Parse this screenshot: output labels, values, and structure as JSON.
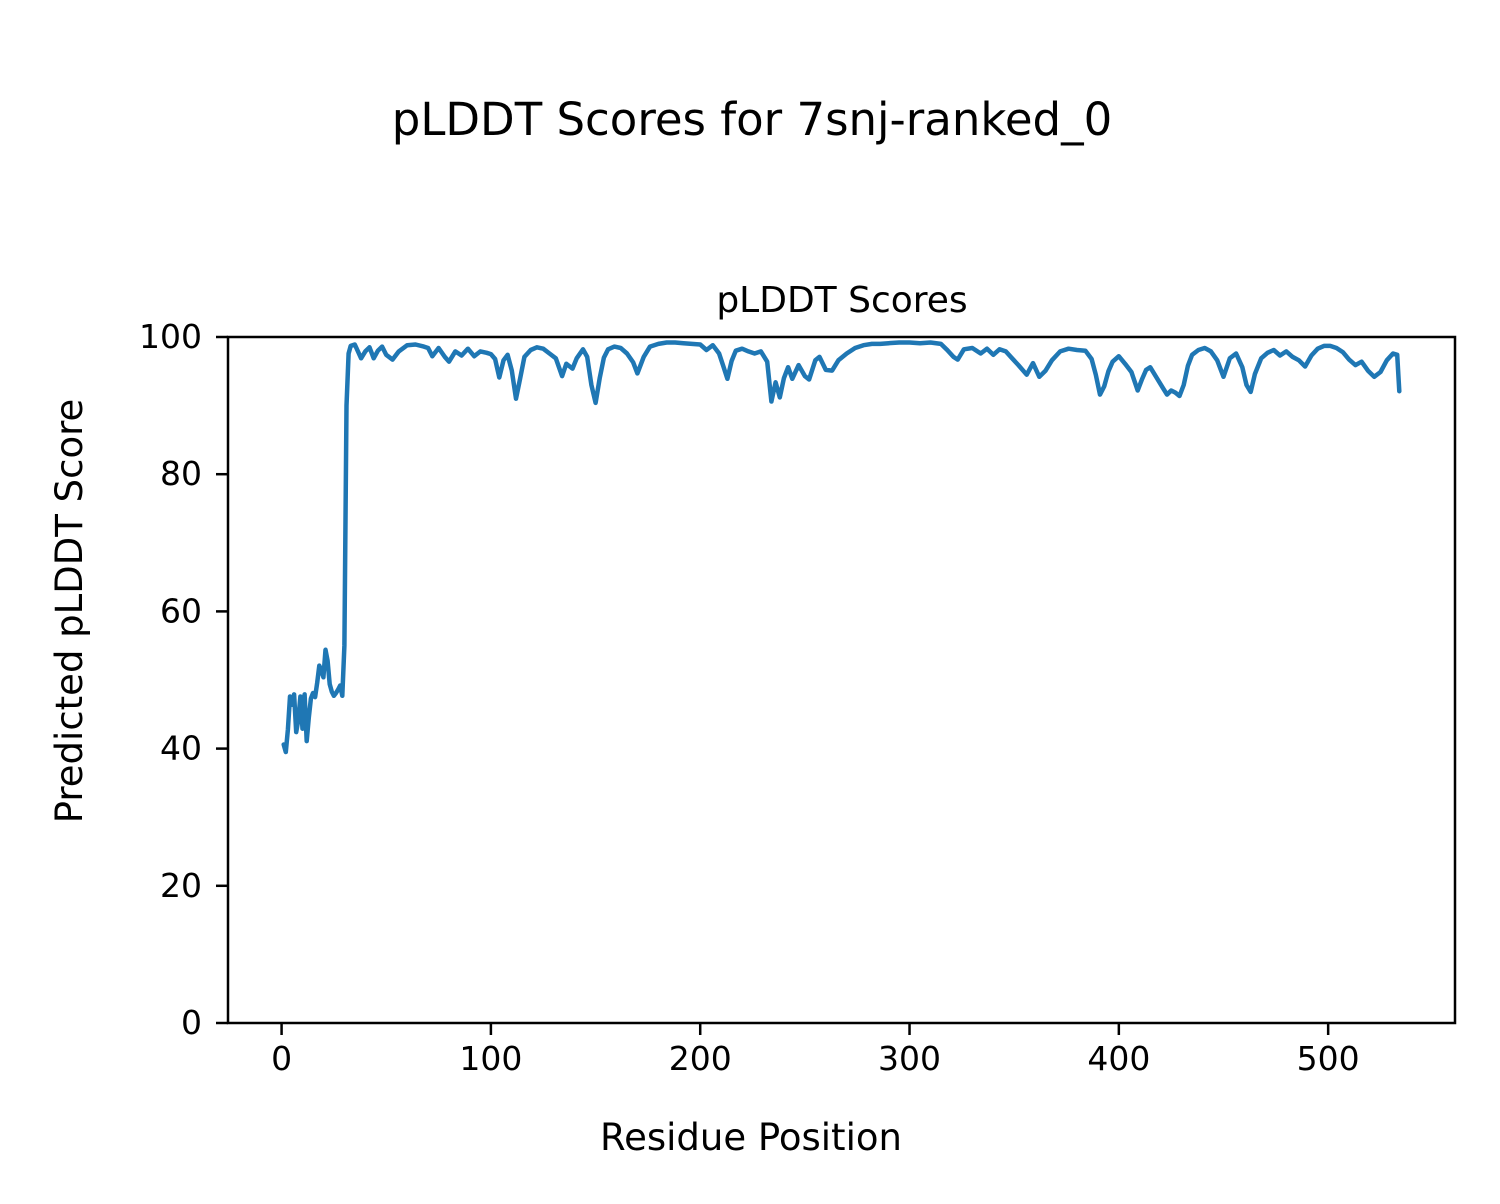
{
  "figure_title": "pLDDT Scores for 7snj-ranked_0",
  "chart_data": {
    "type": "line",
    "title": "pLDDT Scores",
    "xlabel": "Residue Position",
    "ylabel": "Predicted pLDDT Score",
    "xlim": [
      -25.6,
      560.6
    ],
    "ylim": [
      0,
      100
    ],
    "x_ticks": [
      0,
      100,
      200,
      300,
      400,
      500
    ],
    "y_ticks": [
      0,
      20,
      40,
      60,
      80,
      100
    ],
    "grid": false,
    "legend": false,
    "line_color": "#1f77b4",
    "series": [
      {
        "name": "pLDDT",
        "points": [
          [
            1,
            40.6
          ],
          [
            2,
            39.5
          ],
          [
            3,
            42.8
          ],
          [
            4,
            47.6
          ],
          [
            5,
            46.4
          ],
          [
            6,
            47.9
          ],
          [
            7,
            42.4
          ],
          [
            8,
            44.2
          ],
          [
            9,
            47.6
          ],
          [
            10,
            42.9
          ],
          [
            11,
            47.9
          ],
          [
            12,
            41.1
          ],
          [
            13,
            44.5
          ],
          [
            14,
            47.3
          ],
          [
            15,
            48.1
          ],
          [
            16,
            47.5
          ],
          [
            17,
            49.6
          ],
          [
            18,
            52.1
          ],
          [
            19,
            51.4
          ],
          [
            20,
            50.4
          ],
          [
            21,
            54.4
          ],
          [
            22,
            52.8
          ],
          [
            23,
            49.4
          ],
          [
            24,
            48.3
          ],
          [
            25,
            47.7
          ],
          [
            26,
            48.1
          ],
          [
            27,
            48.6
          ],
          [
            28,
            49.2
          ],
          [
            29,
            47.7
          ],
          [
            30,
            55.0
          ],
          [
            31,
            90.0
          ],
          [
            32,
            97.6
          ],
          [
            33,
            98.7
          ],
          [
            35,
            98.9
          ],
          [
            38,
            96.9
          ],
          [
            40,
            97.9
          ],
          [
            42,
            98.5
          ],
          [
            44,
            96.9
          ],
          [
            46,
            98.0
          ],
          [
            48,
            98.6
          ],
          [
            50,
            97.4
          ],
          [
            53,
            96.7
          ],
          [
            56,
            97.9
          ],
          [
            60,
            98.8
          ],
          [
            64,
            98.9
          ],
          [
            68,
            98.6
          ],
          [
            70,
            98.4
          ],
          [
            72,
            97.2
          ],
          [
            75,
            98.4
          ],
          [
            78,
            97.1
          ],
          [
            80,
            96.4
          ],
          [
            83,
            97.9
          ],
          [
            86,
            97.3
          ],
          [
            89,
            98.3
          ],
          [
            92,
            97.2
          ],
          [
            95,
            97.9
          ],
          [
            98,
            97.7
          ],
          [
            100,
            97.5
          ],
          [
            102,
            96.8
          ],
          [
            104,
            94.1
          ],
          [
            106,
            96.6
          ],
          [
            108,
            97.4
          ],
          [
            110,
            95.1
          ],
          [
            112,
            91.0
          ],
          [
            114,
            94.0
          ],
          [
            116,
            97.1
          ],
          [
            119,
            98.1
          ],
          [
            122,
            98.5
          ],
          [
            125,
            98.3
          ],
          [
            128,
            97.6
          ],
          [
            131,
            96.9
          ],
          [
            134,
            94.3
          ],
          [
            136,
            96.1
          ],
          [
            139,
            95.4
          ],
          [
            141,
            96.9
          ],
          [
            144,
            98.2
          ],
          [
            146,
            97.1
          ],
          [
            148,
            93.0
          ],
          [
            150,
            90.4
          ],
          [
            152,
            94.0
          ],
          [
            154,
            97.0
          ],
          [
            156,
            98.2
          ],
          [
            159,
            98.6
          ],
          [
            162,
            98.4
          ],
          [
            165,
            97.6
          ],
          [
            168,
            96.3
          ],
          [
            170,
            94.7
          ],
          [
            173,
            97.1
          ],
          [
            176,
            98.6
          ],
          [
            180,
            99.0
          ],
          [
            184,
            99.2
          ],
          [
            188,
            99.2
          ],
          [
            192,
            99.1
          ],
          [
            196,
            99.0
          ],
          [
            200,
            98.9
          ],
          [
            203,
            98.1
          ],
          [
            206,
            98.8
          ],
          [
            209,
            97.6
          ],
          [
            211,
            95.8
          ],
          [
            213,
            93.9
          ],
          [
            215,
            96.5
          ],
          [
            217,
            98.0
          ],
          [
            220,
            98.3
          ],
          [
            223,
            97.9
          ],
          [
            226,
            97.6
          ],
          [
            229,
            97.9
          ],
          [
            232,
            96.4
          ],
          [
            234,
            90.6
          ],
          [
            236,
            93.4
          ],
          [
            238,
            91.2
          ],
          [
            240,
            94.0
          ],
          [
            242,
            95.6
          ],
          [
            244,
            93.9
          ],
          [
            247,
            95.9
          ],
          [
            250,
            94.3
          ],
          [
            252,
            93.8
          ],
          [
            255,
            96.6
          ],
          [
            257,
            97.1
          ],
          [
            260,
            95.2
          ],
          [
            263,
            95.1
          ],
          [
            266,
            96.6
          ],
          [
            270,
            97.6
          ],
          [
            274,
            98.4
          ],
          [
            278,
            98.8
          ],
          [
            282,
            99.0
          ],
          [
            286,
            99.0
          ],
          [
            290,
            99.1
          ],
          [
            295,
            99.2
          ],
          [
            300,
            99.2
          ],
          [
            305,
            99.1
          ],
          [
            310,
            99.2
          ],
          [
            315,
            99.0
          ],
          [
            318,
            98.1
          ],
          [
            321,
            97.1
          ],
          [
            323,
            96.7
          ],
          [
            326,
            98.2
          ],
          [
            330,
            98.4
          ],
          [
            334,
            97.6
          ],
          [
            337,
            98.3
          ],
          [
            340,
            97.4
          ],
          [
            343,
            98.2
          ],
          [
            346,
            97.9
          ],
          [
            349,
            96.9
          ],
          [
            352,
            95.9
          ],
          [
            356,
            94.5
          ],
          [
            359,
            96.2
          ],
          [
            362,
            94.2
          ],
          [
            365,
            95.1
          ],
          [
            368,
            96.6
          ],
          [
            372,
            97.9
          ],
          [
            376,
            98.3
          ],
          [
            380,
            98.1
          ],
          [
            384,
            98.0
          ],
          [
            387,
            96.8
          ],
          [
            389,
            94.5
          ],
          [
            391,
            91.6
          ],
          [
            393,
            92.8
          ],
          [
            395,
            95.0
          ],
          [
            397,
            96.4
          ],
          [
            400,
            97.2
          ],
          [
            403,
            96.1
          ],
          [
            406,
            94.9
          ],
          [
            409,
            92.2
          ],
          [
            411,
            93.8
          ],
          [
            413,
            95.2
          ],
          [
            415,
            95.6
          ],
          [
            418,
            94.1
          ],
          [
            421,
            92.6
          ],
          [
            423,
            91.6
          ],
          [
            425,
            92.2
          ],
          [
            427,
            91.9
          ],
          [
            429,
            91.4
          ],
          [
            431,
            93.0
          ],
          [
            433,
            95.8
          ],
          [
            435,
            97.4
          ],
          [
            438,
            98.1
          ],
          [
            441,
            98.4
          ],
          [
            444,
            97.9
          ],
          [
            447,
            96.6
          ],
          [
            450,
            94.2
          ],
          [
            453,
            96.9
          ],
          [
            456,
            97.6
          ],
          [
            459,
            95.6
          ],
          [
            461,
            93.0
          ],
          [
            463,
            92.0
          ],
          [
            465,
            94.6
          ],
          [
            468,
            96.9
          ],
          [
            471,
            97.7
          ],
          [
            474,
            98.1
          ],
          [
            477,
            97.3
          ],
          [
            480,
            97.9
          ],
          [
            483,
            97.1
          ],
          [
            486,
            96.6
          ],
          [
            489,
            95.7
          ],
          [
            492,
            97.3
          ],
          [
            495,
            98.3
          ],
          [
            498,
            98.7
          ],
          [
            501,
            98.7
          ],
          [
            504,
            98.4
          ],
          [
            507,
            97.8
          ],
          [
            510,
            96.7
          ],
          [
            513,
            95.9
          ],
          [
            516,
            96.4
          ],
          [
            519,
            95.1
          ],
          [
            522,
            94.2
          ],
          [
            525,
            94.9
          ],
          [
            528,
            96.6
          ],
          [
            531,
            97.6
          ],
          [
            533,
            97.4
          ],
          [
            534,
            92.1
          ]
        ]
      }
    ]
  }
}
